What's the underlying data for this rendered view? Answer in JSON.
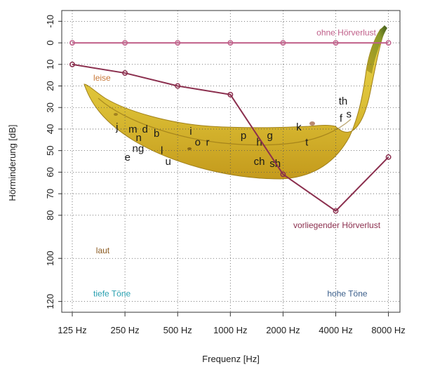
{
  "chart_data": {
    "type": "line",
    "xlabel": "Frequenz [Hz]",
    "ylabel": "Hörminderung [dB]",
    "x_categories": [
      "125 Hz",
      "250 Hz",
      "500 Hz",
      "1000 Hz",
      "2000 Hz",
      "4000 Hz",
      "8000 Hz"
    ],
    "y_ticks": [
      -10,
      0,
      10,
      20,
      30,
      40,
      50,
      60,
      70,
      80,
      100,
      120
    ],
    "ylim": [
      -15,
      125
    ],
    "y_inverted": true,
    "grid": "dotted",
    "series": [
      {
        "name": "ohne Hörverlust",
        "color": "#c0608a",
        "values": [
          0,
          0,
          0,
          0,
          0,
          0,
          0
        ]
      },
      {
        "name": "vorliegender Hörverlust",
        "color": "#8b2f4e",
        "values": [
          10,
          14,
          20,
          24,
          61,
          78,
          53
        ]
      }
    ],
    "annotations": [
      {
        "text": "leise",
        "color": "#c87838",
        "x": 0.4,
        "y": 16
      },
      {
        "text": "laut",
        "color": "#8a5a20",
        "x": 0.45,
        "y": 96
      },
      {
        "text": "tiefe Töne",
        "color": "#2aa0b0",
        "x": 0.4,
        "y": 116
      },
      {
        "text": "hohe Töne",
        "color": "#3a5e8a",
        "x": 5.6,
        "y": 116
      }
    ],
    "phonemes": [
      {
        "text": "j",
        "x": 0.85,
        "y": 39
      },
      {
        "text": "m",
        "x": 1.15,
        "y": 40
      },
      {
        "text": "d",
        "x": 1.38,
        "y": 40
      },
      {
        "text": "n",
        "x": 1.26,
        "y": 44
      },
      {
        "text": "b",
        "x": 1.6,
        "y": 42
      },
      {
        "text": "ng",
        "x": 1.25,
        "y": 49
      },
      {
        "text": "e",
        "x": 1.05,
        "y": 53
      },
      {
        "text": "l",
        "x": 1.7,
        "y": 50
      },
      {
        "text": "u",
        "x": 1.82,
        "y": 55
      },
      {
        "text": "i",
        "x": 2.25,
        "y": 41
      },
      {
        "text": "o",
        "x": 2.38,
        "y": 46
      },
      {
        "text": "r",
        "x": 2.57,
        "y": 46
      },
      {
        "text": "p",
        "x": 3.25,
        "y": 43
      },
      {
        "text": "h",
        "x": 3.55,
        "y": 46
      },
      {
        "text": "g",
        "x": 3.75,
        "y": 43
      },
      {
        "text": "ch",
        "x": 3.55,
        "y": 55
      },
      {
        "text": "sh",
        "x": 3.85,
        "y": 56
      },
      {
        "text": "k",
        "x": 4.3,
        "y": 39
      },
      {
        "text": "t",
        "x": 4.45,
        "y": 46
      },
      {
        "text": "th",
        "x": 5.14,
        "y": 27
      },
      {
        "text": "f",
        "x": 5.1,
        "y": 35
      },
      {
        "text": "s",
        "x": 5.25,
        "y": 33
      }
    ]
  }
}
